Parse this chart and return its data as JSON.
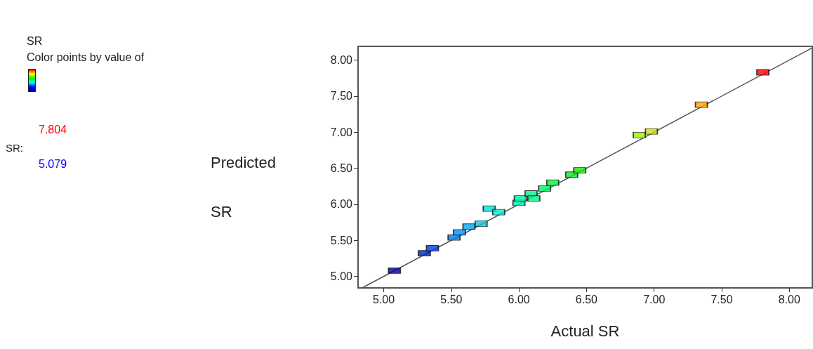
{
  "chart_data": {
    "type": "scatter",
    "title": "SR",
    "subtitle": "Color points by value of",
    "xlabel": "Actual SR",
    "ylabel": "Predicted SR",
    "annotations": [
      "SR:",
      "7.804",
      "5.079"
    ],
    "xlim": [
      4.81,
      8.17
    ],
    "ylim": [
      4.84,
      8.19
    ],
    "xticks": [
      {
        "value": 5,
        "label": "5.00"
      },
      {
        "value": 5.5,
        "label": "5.50"
      },
      {
        "value": 6,
        "label": "6.00"
      },
      {
        "value": 6.5,
        "label": "6.50"
      },
      {
        "value": 7,
        "label": "7.00"
      },
      {
        "value": 7.5,
        "label": "7.50"
      },
      {
        "value": 8,
        "label": "8.00"
      }
    ],
    "yticks": [
      {
        "value": 5,
        "label": "5.00"
      },
      {
        "value": 5.5,
        "label": "5.50"
      },
      {
        "value": 6,
        "label": "6.00"
      },
      {
        "value": 6.5,
        "label": "6.50"
      },
      {
        "value": 7,
        "label": "7.00"
      },
      {
        "value": 7.5,
        "label": "7.50"
      },
      {
        "value": 8,
        "label": "8.00"
      }
    ],
    "grid": false,
    "marker": "square",
    "series": [
      {
        "type": "scatter",
        "x": [
          5.079,
          5.3,
          5.36,
          5.52,
          5.56,
          5.63,
          5.72,
          5.78,
          5.85,
          6.0,
          6.01,
          6.09,
          6.11,
          6.19,
          6.25,
          6.39,
          6.45,
          6.89,
          6.98,
          7.35,
          7.804
        ],
        "values": [
          5.08,
          5.32,
          5.39,
          5.54,
          5.61,
          5.69,
          5.73,
          5.94,
          5.89,
          6.02,
          6.08,
          6.15,
          6.08,
          6.22,
          6.3,
          6.41,
          6.47,
          6.96,
          7.01,
          7.38,
          7.83
        ],
        "colors": [
          "#000090",
          "#0020c0",
          "#0040e0",
          "#0080e0",
          "#0090f0",
          "#00a8f0",
          "#00c8e8",
          "#00e0e0",
          "#00e8d0",
          "#00f0b0",
          "#00f0a8",
          "#00f090",
          "#00f088",
          "#00f060",
          "#00f040",
          "#10e820",
          "#20e010",
          "#a0f000",
          "#d0e000",
          "#ffa000",
          "#ff0000"
        ]
      },
      {
        "type": "line",
        "x": [
          4.84,
          8.17
        ],
        "values": [
          4.84,
          8.17
        ],
        "color": "#555555",
        "marker": "none",
        "line_style": "solid"
      }
    ]
  }
}
